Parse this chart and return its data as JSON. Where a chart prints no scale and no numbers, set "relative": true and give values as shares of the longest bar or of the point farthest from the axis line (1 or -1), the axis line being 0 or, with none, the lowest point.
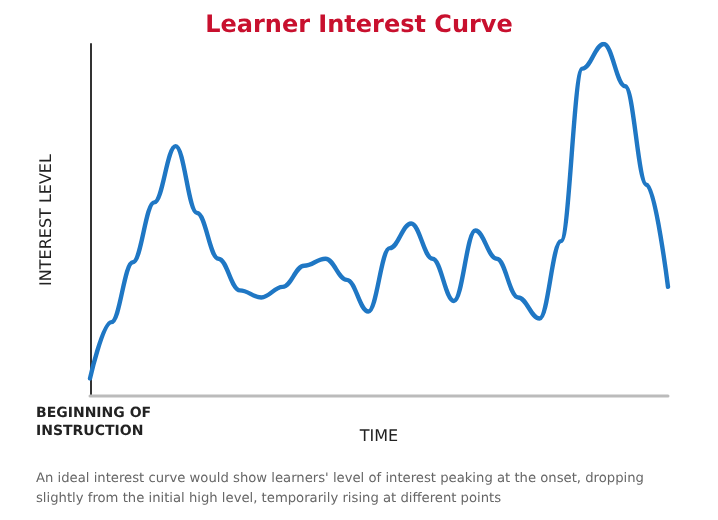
{
  "chart_data": {
    "type": "line",
    "title": "Learner Interest Curve",
    "xlabel": "TIME",
    "ylabel": "INTEREST LEVEL",
    "relative": true,
    "grid": false,
    "marker": "none",
    "line_style": "solid",
    "annotations": [
      "BEGINNING OF\nINSTRUCTION",
      "An ideal interest curve would show learners' level of interest peaking at the onset, dropping slightly from the initial high level, temporarily rising at different points"
    ],
    "categories": [
      null,
      null,
      null,
      null,
      null,
      null,
      null,
      null,
      null,
      null,
      null,
      null,
      null,
      null,
      null,
      null,
      null,
      null,
      null,
      null,
      null,
      null,
      null,
      null,
      null,
      null,
      null,
      null
    ],
    "series": [
      {
        "color": "#1f77c4",
        "values": [
          0.05,
          0.21,
          0.38,
          0.55,
          0.71,
          0.52,
          0.39,
          0.3,
          0.28,
          0.31,
          0.37,
          0.39,
          0.33,
          0.24,
          0.42,
          0.49,
          0.39,
          0.27,
          0.47,
          0.39,
          0.28,
          0.22,
          0.44,
          0.93,
          1,
          0.88,
          0.6,
          0.31
        ]
      }
    ]
  }
}
